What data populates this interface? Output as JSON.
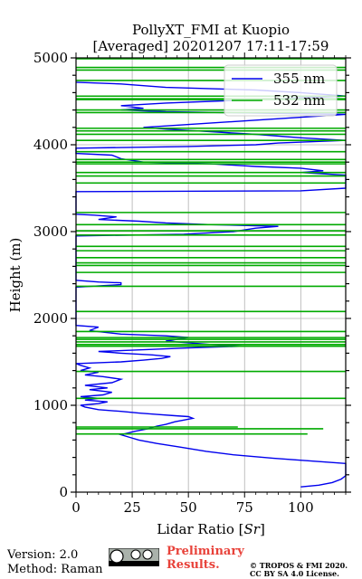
{
  "chart_data": {
    "type": "line",
    "title_line1": "PollyXT_FMI at Kuopio",
    "title_line2": "[Averaged] 20201207 17:11-17:59",
    "xlabel": "Lidar Ratio [Sr]",
    "xlabel_plain": "Lidar Ratio [",
    "xlabel_italic": "Sr",
    "xlabel_close": "]",
    "ylabel": "Height (m)",
    "xlim": [
      0,
      120
    ],
    "ylim": [
      0,
      5000
    ],
    "xticks": [
      "0",
      "25",
      "50",
      "75",
      "100"
    ],
    "yticks": [
      "0",
      "1000",
      "2000",
      "3000",
      "4000",
      "5000"
    ],
    "grid": true,
    "legend_position": "top-right",
    "series": [
      {
        "name": "355 nm",
        "color": "#0000ee",
        "points": [
          [
            100,
            60
          ],
          [
            108,
            80
          ],
          [
            114,
            110
          ],
          [
            118,
            150
          ],
          [
            120,
            190
          ],
          [
            120,
            330
          ],
          [
            104,
            360
          ],
          [
            88,
            390
          ],
          [
            70,
            430
          ],
          [
            58,
            470
          ],
          [
            46,
            520
          ],
          [
            36,
            560
          ],
          [
            28,
            600
          ],
          [
            24,
            630
          ],
          [
            20,
            660
          ],
          [
            26,
            700
          ],
          [
            32,
            730
          ],
          [
            36,
            760
          ],
          [
            40,
            780
          ],
          [
            44,
            810
          ],
          [
            48,
            830
          ],
          [
            52,
            850
          ],
          [
            50,
            870
          ],
          [
            44,
            880
          ],
          [
            36,
            895
          ],
          [
            28,
            910
          ],
          [
            20,
            930
          ],
          [
            10,
            950
          ],
          [
            4,
            980
          ],
          [
            2,
            1000
          ],
          [
            10,
            1020
          ],
          [
            14,
            1040
          ],
          [
            4,
            1060
          ],
          [
            10,
            1080
          ],
          [
            2,
            1100
          ],
          [
            12,
            1120
          ],
          [
            16,
            1150
          ],
          [
            6,
            1180
          ],
          [
            14,
            1200
          ],
          [
            4,
            1230
          ],
          [
            16,
            1260
          ],
          [
            20,
            1300
          ],
          [
            12,
            1330
          ],
          [
            4,
            1350
          ],
          [
            10,
            1380
          ],
          [
            2,
            1400
          ],
          [
            6,
            1430
          ],
          [
            2,
            1460
          ],
          [
            0,
            1480
          ],
          [
            20,
            1500
          ],
          [
            30,
            1520
          ],
          [
            38,
            1540
          ],
          [
            42,
            1560
          ],
          [
            34,
            1580
          ],
          [
            20,
            1600
          ],
          [
            10,
            1620
          ],
          [
            30,
            1640
          ],
          [
            50,
            1660
          ],
          [
            74,
            1680
          ],
          [
            60,
            1700
          ],
          [
            50,
            1720
          ],
          [
            40,
            1740
          ],
          [
            45,
            1760
          ],
          [
            50,
            1780
          ],
          [
            40,
            1800
          ],
          [
            20,
            1820
          ],
          [
            6,
            1860
          ],
          [
            10,
            1900
          ],
          [
            0,
            1920
          ],
          [
            0,
            2360
          ],
          [
            20,
            2390
          ],
          [
            20,
            2410
          ],
          [
            10,
            2420
          ],
          [
            0,
            2440
          ],
          [
            0,
            2950
          ],
          [
            48,
            2970
          ],
          [
            70,
            3000
          ],
          [
            80,
            3040
          ],
          [
            90,
            3060
          ],
          [
            60,
            3080
          ],
          [
            40,
            3100
          ],
          [
            28,
            3120
          ],
          [
            10,
            3140
          ],
          [
            18,
            3170
          ],
          [
            8,
            3190
          ],
          [
            0,
            3200
          ],
          [
            0,
            3460
          ],
          [
            100,
            3470
          ],
          [
            120,
            3500
          ],
          [
            120,
            3650
          ],
          [
            100,
            3680
          ],
          [
            110,
            3700
          ],
          [
            100,
            3730
          ],
          [
            80,
            3750
          ],
          [
            60,
            3780
          ],
          [
            30,
            3800
          ],
          [
            20,
            3840
          ],
          [
            16,
            3880
          ],
          [
            0,
            3900
          ],
          [
            0,
            3960
          ],
          [
            50,
            3980
          ],
          [
            80,
            4000
          ],
          [
            90,
            4020
          ],
          [
            120,
            4050
          ],
          [
            100,
            4080
          ],
          [
            80,
            4120
          ],
          [
            60,
            4150
          ],
          [
            40,
            4180
          ],
          [
            30,
            4200
          ],
          [
            120,
            4350
          ],
          [
            40,
            4380
          ],
          [
            20,
            4400
          ],
          [
            30,
            4420
          ],
          [
            20,
            4450
          ],
          [
            40,
            4480
          ],
          [
            60,
            4500
          ],
          [
            90,
            4530
          ],
          [
            120,
            4560
          ],
          [
            100,
            4600
          ],
          [
            80,
            4630
          ],
          [
            40,
            4660
          ],
          [
            20,
            4700
          ],
          [
            0,
            4720
          ]
        ]
      },
      {
        "name": "532 nm",
        "color": "#00aa00",
        "segments": [
          [
            0,
            103,
            670
          ],
          [
            0,
            110,
            730
          ],
          [
            0,
            72,
            750
          ],
          [
            0,
            120,
            1080
          ],
          [
            0,
            120,
            1390
          ],
          [
            0,
            120,
            1680
          ],
          [
            0,
            120,
            1700
          ],
          [
            0,
            120,
            1730
          ],
          [
            0,
            120,
            1760
          ],
          [
            0,
            120,
            1780
          ],
          [
            0,
            120,
            1850
          ],
          [
            0,
            120,
            2080
          ],
          [
            0,
            120,
            2370
          ],
          [
            0,
            120,
            2530
          ],
          [
            0,
            120,
            2610
          ],
          [
            0,
            120,
            2640
          ],
          [
            0,
            120,
            2700
          ],
          [
            0,
            120,
            2780
          ],
          [
            0,
            120,
            2830
          ],
          [
            0,
            120,
            2960
          ],
          [
            0,
            120,
            3010
          ],
          [
            0,
            120,
            3080
          ],
          [
            0,
            120,
            3220
          ],
          [
            0,
            120,
            3560
          ],
          [
            0,
            120,
            3640
          ],
          [
            0,
            120,
            3680
          ],
          [
            0,
            120,
            3780
          ],
          [
            0,
            120,
            3800
          ],
          [
            0,
            120,
            3830
          ],
          [
            0,
            120,
            3920
          ],
          [
            0,
            120,
            4050
          ],
          [
            0,
            120,
            4120
          ],
          [
            0,
            120,
            4160
          ],
          [
            0,
            120,
            4190
          ],
          [
            0,
            120,
            4370
          ],
          [
            0,
            120,
            4400
          ],
          [
            0,
            120,
            4530
          ],
          [
            0,
            120,
            4560
          ],
          [
            0,
            120,
            4740
          ],
          [
            0,
            120,
            4860
          ],
          [
            0,
            120,
            4890
          ],
          [
            0,
            120,
            4990
          ],
          [
            0,
            120,
            4520
          ]
        ]
      }
    ]
  },
  "footer": {
    "version": "Version: 2.0",
    "method": "Method: Raman",
    "preliminary_line1": "Preliminary",
    "preliminary_line2": "Results.",
    "copyright_line1": "© TROPOS & FMI 2020.",
    "copyright_line2": "CC BY SA 4.0 License.",
    "license_logo": "cc-by-sa-logo"
  }
}
